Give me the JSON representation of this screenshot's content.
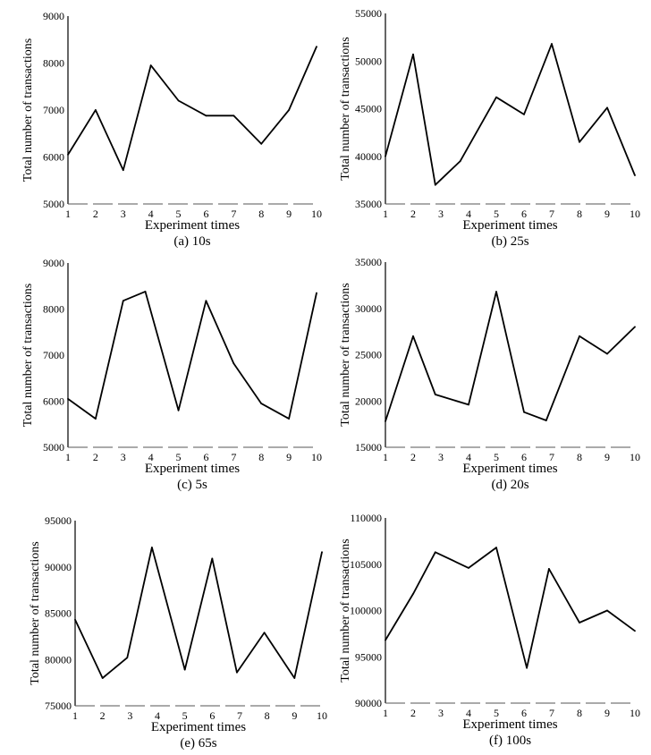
{
  "chart_data": [
    {
      "type": "line",
      "caption": "(a) 10s",
      "xlabel": "Experiment times",
      "ylabel": "Total number of transactions",
      "x": [
        1,
        2,
        3,
        4,
        5,
        6,
        7,
        8,
        9,
        10
      ],
      "xticks": [
        "1",
        "2",
        "3",
        "4",
        "5",
        "6",
        "7",
        "8",
        "9",
        "10"
      ],
      "yticks": [
        "5000",
        "6000",
        "7000",
        "8000",
        "9000"
      ],
      "ylim": [
        5000,
        9000
      ],
      "series": [
        {
          "values": [
            6050,
            7000,
            5720,
            7950,
            7200,
            6880,
            6880,
            6280,
            7000,
            8350
          ]
        }
      ]
    },
    {
      "type": "line",
      "caption": "(b) 25s",
      "xlabel": "Experiment times",
      "ylabel": "Total number of transactions",
      "x": [
        1,
        2,
        2.8,
        3.7,
        5,
        6,
        7,
        8,
        9,
        10
      ],
      "xticks": [
        "1",
        "2",
        "3",
        "4",
        "5",
        "6",
        "7",
        "8",
        "9",
        "10"
      ],
      "yticks": [
        "35000",
        "40000",
        "45000",
        "50000",
        "55000"
      ],
      "ylim": [
        35000,
        55000
      ],
      "series": [
        {
          "values": [
            40000,
            50700,
            37000,
            39500,
            46200,
            44400,
            51800,
            41500,
            45100,
            38000
          ]
        }
      ]
    },
    {
      "type": "line",
      "caption": "(c) 5s",
      "xlabel": "Experiment times",
      "ylabel": "Total number of transactions",
      "x": [
        1,
        2,
        3,
        3.8,
        5,
        6,
        7,
        8,
        9,
        10
      ],
      "xticks": [
        "1",
        "2",
        "3",
        "4",
        "5",
        "6",
        "7",
        "8",
        "9",
        "10"
      ],
      "yticks": [
        "5000",
        "6000",
        "7000",
        "8000",
        "9000"
      ],
      "ylim": [
        5000,
        9000
      ],
      "series": [
        {
          "values": [
            6050,
            5620,
            8180,
            8380,
            5800,
            8180,
            6820,
            5950,
            5620,
            8350
          ]
        }
      ]
    },
    {
      "type": "line",
      "caption": "(d) 20s",
      "xlabel": "Experiment times",
      "ylabel": "Total number of transactions",
      "x": [
        1,
        2,
        2.8,
        4,
        5,
        6,
        6.8,
        8,
        9,
        10
      ],
      "xticks": [
        "1",
        "2",
        "3",
        "4",
        "5",
        "6",
        "7",
        "8",
        "9",
        "10"
      ],
      "yticks": [
        "15000",
        "20000",
        "25000",
        "30000",
        "35000"
      ],
      "ylim": [
        15000,
        35000
      ],
      "series": [
        {
          "values": [
            17800,
            27000,
            20700,
            19600,
            31800,
            18800,
            17900,
            27000,
            25100,
            28000
          ]
        }
      ]
    },
    {
      "type": "line",
      "caption": "(e) 65s",
      "xlabel": "Experiment times",
      "ylabel": "Total number of transactions",
      "x": [
        1,
        2,
        2.9,
        3.8,
        5,
        6,
        6.9,
        7.9,
        9,
        10
      ],
      "xticks": [
        "1",
        "2",
        "3",
        "4",
        "5",
        "6",
        "7",
        "8",
        "9",
        "10"
      ],
      "yticks": [
        "75000",
        "80000",
        "85000",
        "90000",
        "95000"
      ],
      "ylim": [
        75000,
        95000
      ],
      "series": [
        {
          "values": [
            84300,
            78000,
            80200,
            92100,
            78900,
            90900,
            78600,
            82900,
            78000,
            91600
          ]
        }
      ]
    },
    {
      "type": "line",
      "caption": "(f) 100s",
      "xlabel": "Experiment times",
      "ylabel": "Total number of transactions",
      "x": [
        1,
        2,
        2.8,
        4,
        5,
        6.1,
        6.9,
        8,
        9,
        10
      ],
      "xticks": [
        "1",
        "2",
        "3",
        "4",
        "5",
        "6",
        "7",
        "8",
        "9",
        "10"
      ],
      "yticks": [
        "90000",
        "95000",
        "100000",
        "105000",
        "110000"
      ],
      "ylim": [
        90000,
        110000
      ],
      "series": [
        {
          "values": [
            96800,
            101800,
            106300,
            104600,
            106800,
            93800,
            104500,
            98700,
            100000,
            97800
          ]
        }
      ]
    }
  ]
}
